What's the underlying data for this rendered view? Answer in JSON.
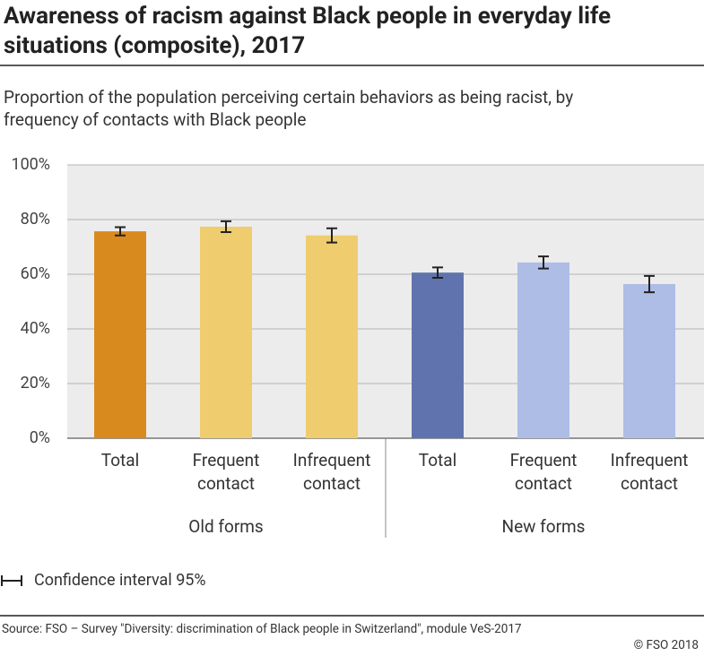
{
  "chart_data": {
    "type": "bar",
    "title": "Awareness of racism against Black people in everyday life situations (composite), 2017",
    "subtitle": "Proportion of the population perceiving certain behaviors as being racist, by frequency of contacts with Black people",
    "groups": [
      {
        "name": "Old forms",
        "categories": [
          "Total",
          "Frequent contact",
          "Infrequent contact"
        ],
        "values": [
          75.7,
          77.4,
          74.2
        ],
        "errors": [
          1.5,
          2.0,
          2.6
        ],
        "colors": [
          "#d98a1f",
          "#efcd6e",
          "#efcd6e"
        ]
      },
      {
        "name": "New forms",
        "categories": [
          "Total",
          "Frequent contact",
          "Infrequent contact"
        ],
        "values": [
          60.6,
          64.3,
          56.4
        ],
        "errors": [
          1.9,
          2.2,
          3.0
        ],
        "colors": [
          "#6073ae",
          "#aebde6",
          "#aebde6"
        ]
      }
    ],
    "ylim": [
      0,
      100
    ],
    "yticks": [
      {
        "value": 0,
        "label": "0%"
      },
      {
        "value": 20,
        "label": "20%"
      },
      {
        "value": 40,
        "label": "40%"
      },
      {
        "value": 60,
        "label": "60%"
      },
      {
        "value": 80,
        "label": "80%"
      },
      {
        "value": 100,
        "label": "100%"
      }
    ],
    "grid": true,
    "legend": "Confidence interval 95%",
    "source": "Source: FSO – Survey \"Diversity: discrimination of Black people in Switzerland\", module VeS-2017",
    "copyright": "© FSO 2018"
  }
}
